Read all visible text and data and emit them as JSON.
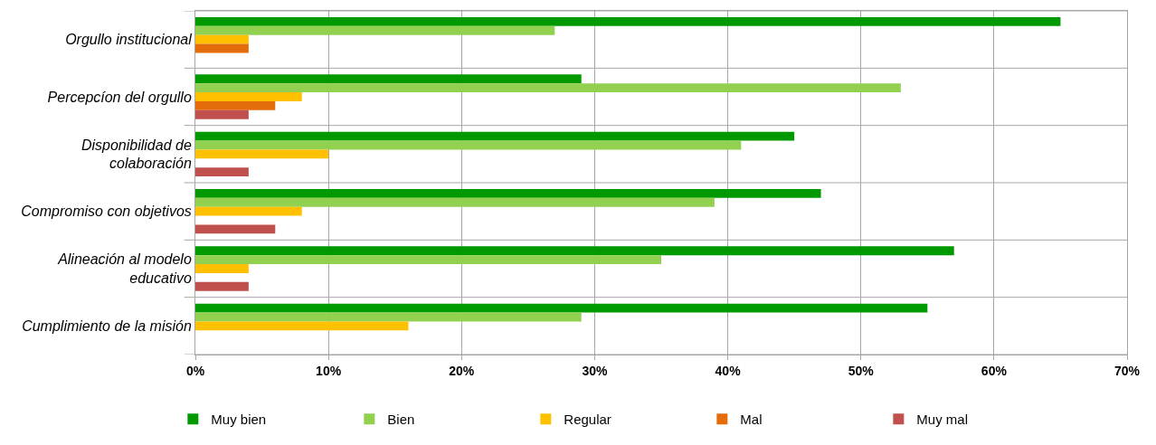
{
  "chart_data": {
    "type": "bar",
    "orientation": "horizontal",
    "categories": [
      "Orgullo institucional",
      "Percepcíon del orgullo",
      "Disponibilidad de\ncolaboración",
      "Compromiso con objetivos",
      "Alineación al modelo\neducativo",
      "Cumplimiento de la misión"
    ],
    "series": [
      {
        "name": "Muy bien",
        "color": "#009900",
        "values": [
          65,
          29,
          45,
          47,
          57,
          55
        ]
      },
      {
        "name": "Bien",
        "color": "#92d050",
        "values": [
          27,
          53,
          41,
          39,
          35,
          29
        ]
      },
      {
        "name": "Regular",
        "color": "#ffc000",
        "values": [
          4,
          8,
          10,
          8,
          4,
          16
        ]
      },
      {
        "name": "Mal",
        "color": "#e46c0a",
        "values": [
          4,
          6,
          null,
          null,
          null,
          null
        ]
      },
      {
        "name": "Muy mal",
        "color": "#c0504d",
        "values": [
          null,
          4,
          4,
          6,
          4,
          null
        ]
      }
    ],
    "xlim": [
      0,
      70
    ],
    "xticks": [
      {
        "value": 0,
        "label": "0%"
      },
      {
        "value": 10,
        "label": "10%"
      },
      {
        "value": 20,
        "label": "20%"
      },
      {
        "value": 30,
        "label": "30%"
      },
      {
        "value": 40,
        "label": "40%"
      },
      {
        "value": 50,
        "label": "50%"
      },
      {
        "value": 60,
        "label": "60%"
      },
      {
        "value": 70,
        "label": "70%"
      }
    ],
    "grid": true,
    "legend": "bottom"
  }
}
